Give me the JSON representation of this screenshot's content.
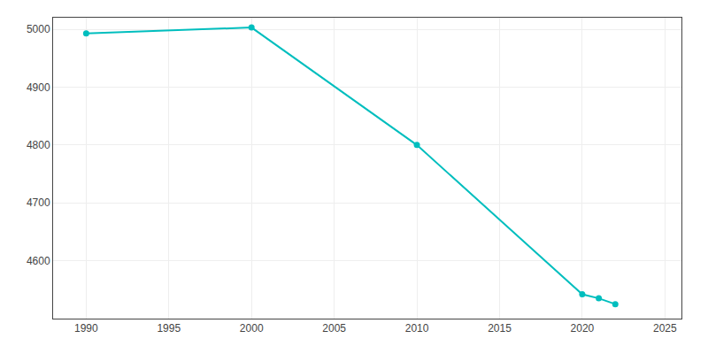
{
  "chart_data": {
    "type": "line",
    "x": [
      1990,
      2000,
      2010,
      2020,
      2021,
      2022
    ],
    "values": [
      4993,
      5003,
      4800,
      4542,
      4535,
      4525
    ],
    "color": "#00BEBE",
    "marker": "circle",
    "xlim": [
      1988,
      2026
    ],
    "ylim": [
      4500,
      5020
    ],
    "xticks": [
      1990,
      1995,
      2000,
      2005,
      2010,
      2015,
      2020,
      2025
    ],
    "yticks": [
      4600,
      4700,
      4800,
      4900,
      5000
    ],
    "grid": true
  }
}
